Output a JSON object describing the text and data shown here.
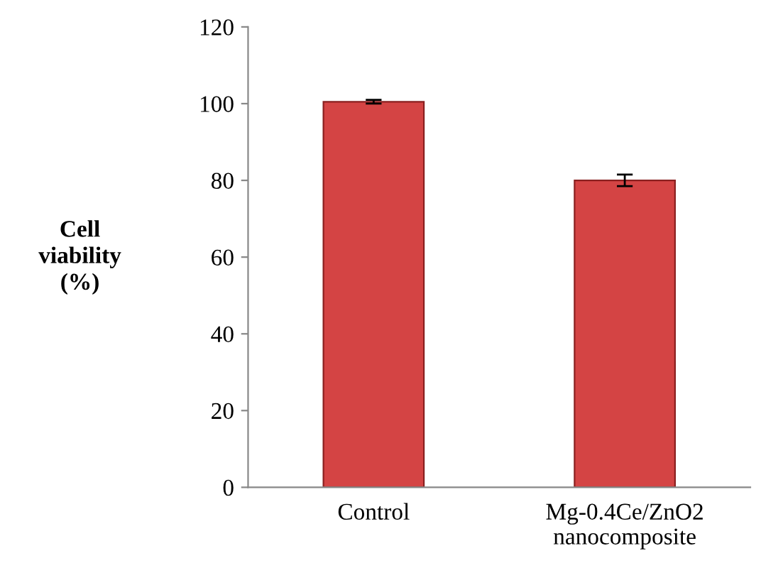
{
  "chart_data": {
    "type": "bar",
    "ylabel": "Cell\nviability\n(%)",
    "categories": [
      "Control",
      "Mg-0.4Ce/ZnO2\nnanocomposite"
    ],
    "values": [
      100.5,
      80
    ],
    "errors": [
      0.5,
      1.5
    ],
    "color": "#d44444",
    "ylim": [
      0,
      120
    ],
    "yticks": [
      0,
      20,
      40,
      60,
      80,
      100,
      120
    ],
    "grid": false,
    "legend": false
  }
}
